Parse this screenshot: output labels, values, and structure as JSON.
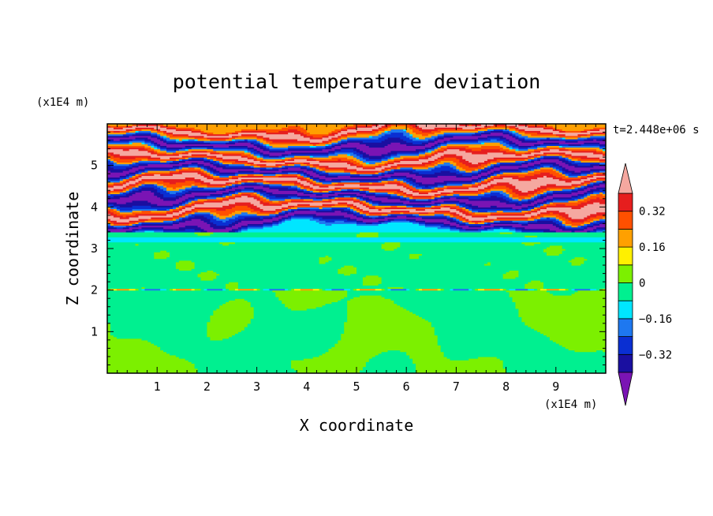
{
  "chart_data": {
    "type": "heatmap",
    "title": "potential temperature deviation",
    "xlabel": "X coordinate",
    "ylabel": "Z coordinate",
    "x_unit": "(x1E4 m)",
    "y_unit": "(x1E4 m)",
    "time_label": "t=2.448e+06 s",
    "xlim": [
      0,
      10
    ],
    "ylim": [
      0,
      6
    ],
    "x_ticks": [
      1,
      2,
      3,
      4,
      5,
      6,
      7,
      8,
      9
    ],
    "y_ticks": [
      1,
      2,
      3,
      4,
      5
    ],
    "colorbar": {
      "levels": [
        -0.4,
        -0.32,
        -0.24,
        -0.16,
        -0.08,
        0,
        0.08,
        0.16,
        0.24,
        0.32,
        0.4
      ],
      "tick_labels": [
        "0.32",
        "0.16",
        "0",
        "−0.16",
        "−0.32"
      ],
      "tick_values": [
        0.32,
        0.16,
        0,
        -0.16,
        -0.32
      ],
      "colors": [
        "#7a14b4",
        "#1a0fa0",
        "#0a2fd2",
        "#1e78f0",
        "#00e6ff",
        "#00f090",
        "#7cf000",
        "#fff000",
        "#ffa000",
        "#ff5000",
        "#e61e1e",
        "#f5a8a0"
      ],
      "extend": "both"
    },
    "field_description": {
      "lower_layer_z": [
        0,
        2
      ],
      "lower_layer_values": [
        0,
        0.08
      ],
      "middle_layer_z": [
        2,
        3.4
      ],
      "middle_layer_values": [
        -0.08,
        0.08
      ],
      "upper_layer_z": [
        3.4,
        6
      ],
      "upper_layer_values": [
        -0.4,
        0.4
      ],
      "upper_layer_bands_z": [
        5.85,
        5.5,
        5.15,
        4.85,
        4.55,
        4.25,
        3.95,
        3.65
      ],
      "upper_layer_band_sign": [
        1,
        -1,
        1,
        -1,
        1,
        -1,
        1,
        -1
      ]
    }
  }
}
